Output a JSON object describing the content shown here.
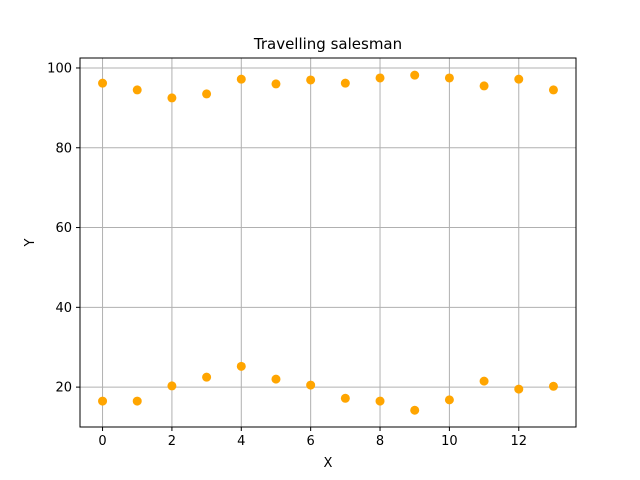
{
  "chart_data": {
    "type": "scatter",
    "title": "Travelling salesman",
    "xlabel": "X",
    "ylabel": "Y",
    "xlim": [
      -0.65,
      13.65
    ],
    "ylim": [
      10,
      102.5
    ],
    "xticks": [
      0,
      2,
      4,
      6,
      8,
      10,
      12
    ],
    "yticks": [
      20,
      40,
      60,
      80,
      100
    ],
    "grid": true,
    "marker_color": "#ffa500",
    "points": [
      {
        "x": 0,
        "y": 96.2
      },
      {
        "x": 1,
        "y": 94.5
      },
      {
        "x": 2,
        "y": 92.5
      },
      {
        "x": 3,
        "y": 93.5
      },
      {
        "x": 4,
        "y": 97.2
      },
      {
        "x": 5,
        "y": 96.0
      },
      {
        "x": 6,
        "y": 97.0
      },
      {
        "x": 7,
        "y": 96.2
      },
      {
        "x": 8,
        "y": 97.5
      },
      {
        "x": 9,
        "y": 98.2
      },
      {
        "x": 10,
        "y": 97.5
      },
      {
        "x": 11,
        "y": 95.5
      },
      {
        "x": 12,
        "y": 97.2
      },
      {
        "x": 13,
        "y": 94.5
      },
      {
        "x": 0,
        "y": 16.5
      },
      {
        "x": 1,
        "y": 16.5
      },
      {
        "x": 2,
        "y": 20.3
      },
      {
        "x": 3,
        "y": 22.5
      },
      {
        "x": 4,
        "y": 25.2
      },
      {
        "x": 5,
        "y": 22.0
      },
      {
        "x": 6,
        "y": 20.5
      },
      {
        "x": 7,
        "y": 17.2
      },
      {
        "x": 8,
        "y": 16.5
      },
      {
        "x": 9,
        "y": 14.2
      },
      {
        "x": 10,
        "y": 16.8
      },
      {
        "x": 11,
        "y": 21.5
      },
      {
        "x": 12,
        "y": 19.5
      },
      {
        "x": 13,
        "y": 20.2
      }
    ]
  }
}
